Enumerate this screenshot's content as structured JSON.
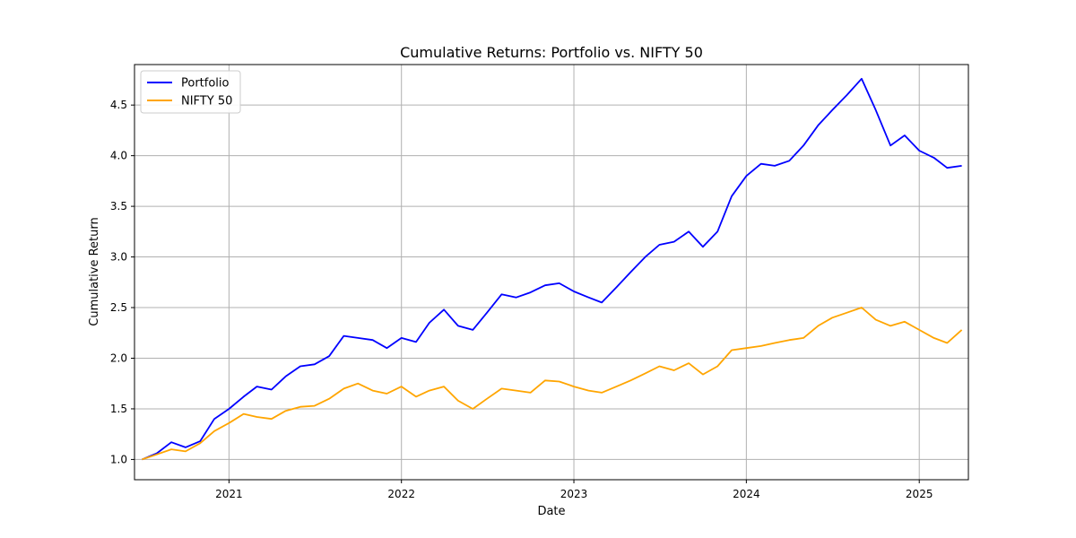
{
  "chart_data": {
    "type": "line",
    "title": "Cumulative Returns: Portfolio vs. NIFTY 50",
    "xlabel": "Date",
    "ylabel": "Cumulative Return",
    "x_range": [
      "2020-06-15",
      "2025-04-15"
    ],
    "ylim": [
      0.8,
      4.9
    ],
    "x_ticks": [
      "2021-01-01",
      "2022-01-01",
      "2023-01-01",
      "2024-01-01",
      "2025-01-01"
    ],
    "x_tick_labels": [
      "2021",
      "2022",
      "2023",
      "2024",
      "2025"
    ],
    "y_ticks": [
      1.0,
      1.5,
      2.0,
      2.5,
      3.0,
      3.5,
      4.0,
      4.5
    ],
    "y_tick_labels": [
      "1.0",
      "1.5",
      "2.0",
      "2.5",
      "3.0",
      "3.5",
      "4.0",
      "4.5"
    ],
    "grid": true,
    "legend_position": "upper-left",
    "series": [
      {
        "name": "Portfolio",
        "color": "#0000ff",
        "points": [
          [
            "2020-07-01",
            1.0
          ],
          [
            "2020-08-01",
            1.06
          ],
          [
            "2020-09-01",
            1.17
          ],
          [
            "2020-10-01",
            1.12
          ],
          [
            "2020-11-01",
            1.18
          ],
          [
            "2020-12-01",
            1.4
          ],
          [
            "2021-01-01",
            1.5
          ],
          [
            "2021-02-01",
            1.62
          ],
          [
            "2021-03-01",
            1.72
          ],
          [
            "2021-04-01",
            1.69
          ],
          [
            "2021-05-01",
            1.82
          ],
          [
            "2021-06-01",
            1.92
          ],
          [
            "2021-07-01",
            1.94
          ],
          [
            "2021-08-01",
            2.02
          ],
          [
            "2021-09-01",
            2.22
          ],
          [
            "2021-10-01",
            2.2
          ],
          [
            "2021-11-01",
            2.18
          ],
          [
            "2021-12-01",
            2.1
          ],
          [
            "2022-01-01",
            2.2
          ],
          [
            "2022-02-01",
            2.16
          ],
          [
            "2022-03-01",
            2.35
          ],
          [
            "2022-04-01",
            2.48
          ],
          [
            "2022-05-01",
            2.32
          ],
          [
            "2022-06-01",
            2.28
          ],
          [
            "2022-07-01",
            2.45
          ],
          [
            "2022-08-01",
            2.63
          ],
          [
            "2022-09-01",
            2.6
          ],
          [
            "2022-10-01",
            2.65
          ],
          [
            "2022-11-01",
            2.72
          ],
          [
            "2022-12-01",
            2.74
          ],
          [
            "2023-01-01",
            2.66
          ],
          [
            "2023-02-01",
            2.6
          ],
          [
            "2023-03-01",
            2.55
          ],
          [
            "2023-04-01",
            2.7
          ],
          [
            "2023-05-01",
            2.85
          ],
          [
            "2023-06-01",
            3.0
          ],
          [
            "2023-07-01",
            3.12
          ],
          [
            "2023-08-01",
            3.15
          ],
          [
            "2023-09-01",
            3.25
          ],
          [
            "2023-10-01",
            3.1
          ],
          [
            "2023-11-01",
            3.25
          ],
          [
            "2023-12-01",
            3.6
          ],
          [
            "2024-01-01",
            3.8
          ],
          [
            "2024-02-01",
            3.92
          ],
          [
            "2024-03-01",
            3.9
          ],
          [
            "2024-04-01",
            3.95
          ],
          [
            "2024-05-01",
            4.1
          ],
          [
            "2024-06-01",
            4.3
          ],
          [
            "2024-07-01",
            4.45
          ],
          [
            "2024-08-01",
            4.6
          ],
          [
            "2024-09-01",
            4.76
          ],
          [
            "2024-10-01",
            4.45
          ],
          [
            "2024-11-01",
            4.1
          ],
          [
            "2024-12-01",
            4.2
          ],
          [
            "2025-01-01",
            4.05
          ],
          [
            "2025-02-01",
            3.98
          ],
          [
            "2025-03-01",
            3.88
          ],
          [
            "2025-04-01",
            3.9
          ]
        ]
      },
      {
        "name": "NIFTY 50",
        "color": "#ffa500",
        "points": [
          [
            "2020-07-01",
            1.0
          ],
          [
            "2020-08-01",
            1.05
          ],
          [
            "2020-09-01",
            1.1
          ],
          [
            "2020-10-01",
            1.08
          ],
          [
            "2020-11-01",
            1.16
          ],
          [
            "2020-12-01",
            1.28
          ],
          [
            "2021-01-01",
            1.36
          ],
          [
            "2021-02-01",
            1.45
          ],
          [
            "2021-03-01",
            1.42
          ],
          [
            "2021-04-01",
            1.4
          ],
          [
            "2021-05-01",
            1.48
          ],
          [
            "2021-06-01",
            1.52
          ],
          [
            "2021-07-01",
            1.53
          ],
          [
            "2021-08-01",
            1.6
          ],
          [
            "2021-09-01",
            1.7
          ],
          [
            "2021-10-01",
            1.75
          ],
          [
            "2021-11-01",
            1.68
          ],
          [
            "2021-12-01",
            1.65
          ],
          [
            "2022-01-01",
            1.72
          ],
          [
            "2022-02-01",
            1.62
          ],
          [
            "2022-03-01",
            1.68
          ],
          [
            "2022-04-01",
            1.72
          ],
          [
            "2022-05-01",
            1.58
          ],
          [
            "2022-06-01",
            1.5
          ],
          [
            "2022-07-01",
            1.6
          ],
          [
            "2022-08-01",
            1.7
          ],
          [
            "2022-09-01",
            1.68
          ],
          [
            "2022-10-01",
            1.66
          ],
          [
            "2022-11-01",
            1.78
          ],
          [
            "2022-12-01",
            1.77
          ],
          [
            "2023-01-01",
            1.72
          ],
          [
            "2023-02-01",
            1.68
          ],
          [
            "2023-03-01",
            1.66
          ],
          [
            "2023-04-01",
            1.72
          ],
          [
            "2023-05-01",
            1.78
          ],
          [
            "2023-06-01",
            1.85
          ],
          [
            "2023-07-01",
            1.92
          ],
          [
            "2023-08-01",
            1.88
          ],
          [
            "2023-09-01",
            1.95
          ],
          [
            "2023-10-01",
            1.84
          ],
          [
            "2023-11-01",
            1.92
          ],
          [
            "2023-12-01",
            2.08
          ],
          [
            "2024-01-01",
            2.1
          ],
          [
            "2024-02-01",
            2.12
          ],
          [
            "2024-03-01",
            2.15
          ],
          [
            "2024-04-01",
            2.18
          ],
          [
            "2024-05-01",
            2.2
          ],
          [
            "2024-06-01",
            2.32
          ],
          [
            "2024-07-01",
            2.4
          ],
          [
            "2024-08-01",
            2.45
          ],
          [
            "2024-09-01",
            2.5
          ],
          [
            "2024-10-01",
            2.38
          ],
          [
            "2024-11-01",
            2.32
          ],
          [
            "2024-12-01",
            2.36
          ],
          [
            "2025-01-01",
            2.28
          ],
          [
            "2025-02-01",
            2.2
          ],
          [
            "2025-03-01",
            2.15
          ],
          [
            "2025-04-01",
            2.28
          ]
        ]
      }
    ]
  }
}
